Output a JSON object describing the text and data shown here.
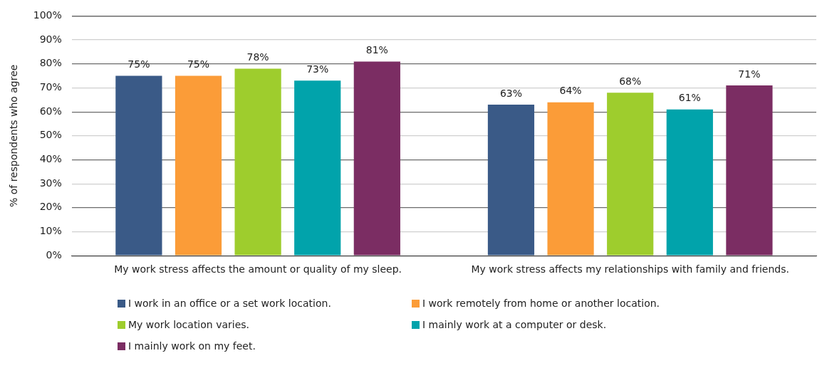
{
  "chart_data": {
    "type": "bar",
    "ylabel": "% of respondents who agree",
    "categories": [
      "My work stress affects the amount or quality of my sleep.",
      "My work stress affects my relationships with family and friends."
    ],
    "series": [
      {
        "name": "I work in an office or a set work location.",
        "color": "#3a5a87",
        "values": [
          75,
          63
        ],
        "value_labels": [
          "75%",
          "63%"
        ]
      },
      {
        "name": "I work remotely from home or another location.",
        "color": "#fb9c38",
        "values": [
          75,
          64
        ],
        "value_labels": [
          "75%",
          "64%"
        ]
      },
      {
        "name": "My work location varies.",
        "color": "#9ecd2d",
        "values": [
          78,
          68
        ],
        "value_labels": [
          "78%",
          "68%"
        ]
      },
      {
        "name": "I mainly work at a computer or desk.",
        "color": "#01a3ab",
        "values": [
          73,
          61
        ],
        "value_labels": [
          "73%",
          "61%"
        ]
      },
      {
        "name": "I mainly work on my feet.",
        "color": "#7b2d63",
        "values": [
          81,
          71
        ],
        "value_labels": [
          "81%",
          "71%"
        ]
      }
    ],
    "ylim": [
      0,
      100
    ],
    "yticks": [
      {
        "value": 0,
        "label": "0%"
      },
      {
        "value": 10,
        "label": "10%"
      },
      {
        "value": 20,
        "label": "20%"
      },
      {
        "value": 30,
        "label": "30%"
      },
      {
        "value": 40,
        "label": "40%"
      },
      {
        "value": 50,
        "label": "50%"
      },
      {
        "value": 60,
        "label": "60%"
      },
      {
        "value": 70,
        "label": "70%"
      },
      {
        "value": 80,
        "label": "80%"
      },
      {
        "value": 90,
        "label": "90%"
      },
      {
        "value": 100,
        "label": "100%"
      }
    ],
    "grid": "y",
    "legend": "bottom"
  }
}
